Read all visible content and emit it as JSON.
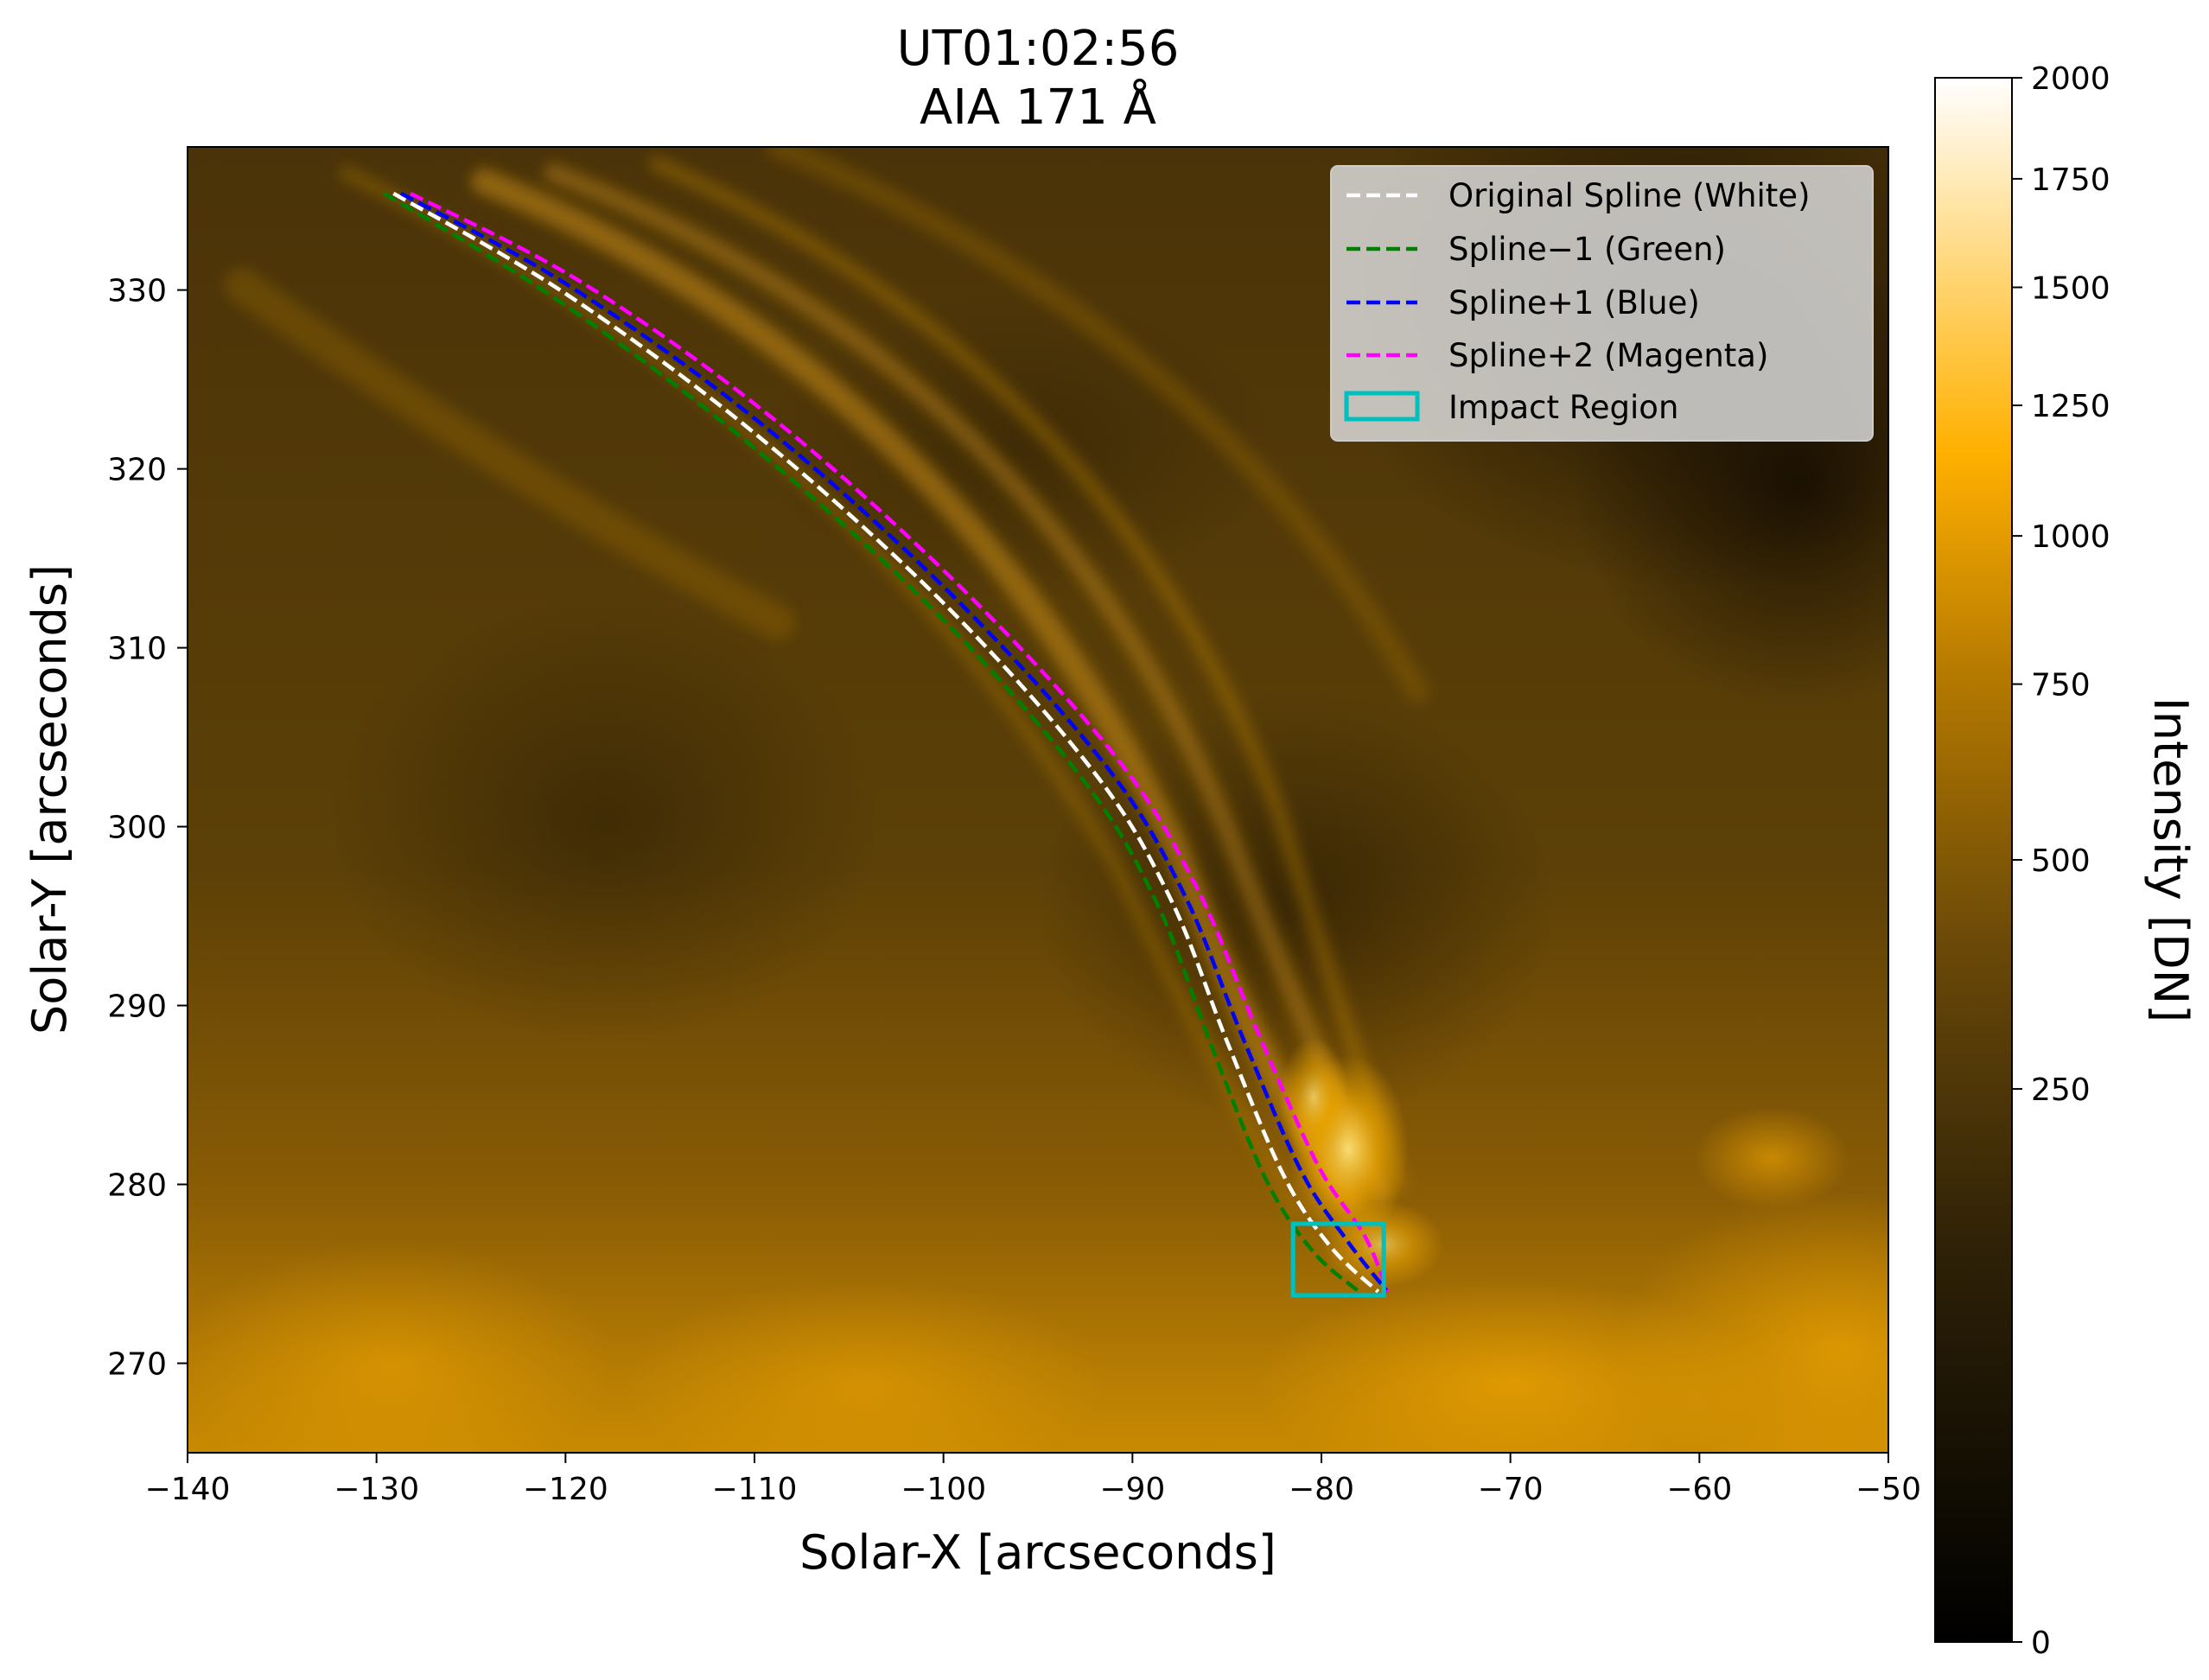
{
  "chart_data": {
    "type": "heatmap",
    "title_line1": "UT01:02:56",
    "title_line2": "AIA 171 Å",
    "xlabel": "Solar-X [arcseconds]",
    "ylabel": "Solar-Y [arcseconds]",
    "xlim": [
      -140,
      -50
    ],
    "ylim": [
      265,
      338
    ],
    "xticks": [
      -140,
      -130,
      -120,
      -110,
      -100,
      -90,
      -80,
      -70,
      -60,
      -50
    ],
    "xtick_labels": [
      "−140",
      "−130",
      "−120",
      "−110",
      "−100",
      "−90",
      "−80",
      "−70",
      "−60",
      "−50"
    ],
    "yticks": [
      270,
      280,
      290,
      300,
      310,
      320,
      330
    ],
    "ytick_labels": [
      "270",
      "280",
      "290",
      "300",
      "310",
      "320",
      "330"
    ],
    "colorbar": {
      "label": "Intensity [DN]",
      "range": [
        0,
        2000
      ],
      "scale": "sqrt",
      "ticks": [
        0,
        250,
        500,
        750,
        1000,
        1250,
        1500,
        1750,
        2000
      ],
      "tick_labels": [
        "0",
        "250",
        "500",
        "750",
        "1000",
        "1250",
        "1500",
        "1750",
        "2000"
      ]
    },
    "series": [
      {
        "name": "Original Spline (White)",
        "color": "#ffffff",
        "style": "dashed",
        "x": [
          -129.1,
          -120,
          -110,
          -100,
          -92,
          -88,
          -85,
          -82,
          -79.5,
          -77
        ],
        "y": [
          335.4,
          329.8,
          322,
          312.5,
          303,
          296,
          288,
          280.5,
          276.5,
          274
        ]
      },
      {
        "name": "Spline−1 (Green)",
        "color": "#008000",
        "style": "dashed",
        "x": [
          -129.6,
          -120.5,
          -110.5,
          -100.5,
          -92.6,
          -88.7,
          -85.8,
          -82.9,
          -80.4,
          -78
        ],
        "y": [
          335.4,
          329.5,
          321.6,
          312.1,
          302.6,
          295.7,
          287.7,
          280.2,
          276.2,
          274
        ]
      },
      {
        "name": "Spline+1 (Blue)",
        "color": "#0000ff",
        "style": "dashed",
        "x": [
          -128.7,
          -119.6,
          -109.5,
          -99.5,
          -91.4,
          -87.3,
          -84.2,
          -81.1,
          -78.6,
          -76.5
        ],
        "y": [
          335.4,
          330.1,
          322.4,
          312.9,
          303.4,
          296.3,
          288.3,
          280.8,
          276.8,
          274
        ]
      },
      {
        "name": "Spline+2 (Magenta)",
        "color": "#ff00ff",
        "style": "dashed",
        "x": [
          -128.2,
          -119.1,
          -109,
          -99,
          -90.8,
          -86.6,
          -83.4,
          -80.2,
          -77.7,
          -76.5
        ],
        "y": [
          335.4,
          330.4,
          322.8,
          313.3,
          303.8,
          296.6,
          288.6,
          281.1,
          277.1,
          274
        ]
      }
    ],
    "impact_region": {
      "name": "Impact Region",
      "color": "#00bfbf",
      "x": [
        -81.5,
        -76.7
      ],
      "y": [
        273.8,
        277.8
      ]
    },
    "legend_position": "top-right"
  }
}
